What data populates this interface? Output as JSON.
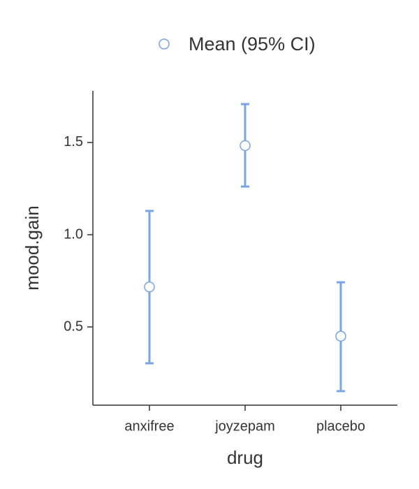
{
  "chart_data": {
    "type": "errorbar",
    "x_label": "drug",
    "y_label": "mood.gain",
    "categories": [
      "anxifree",
      "joyzepam",
      "placebo"
    ],
    "series": [
      {
        "name": "Mean (95% CI)",
        "color": "#78a5e6",
        "values": [
          0.717,
          1.483,
          0.45
        ],
        "ci_lower": [
          0.303,
          1.261,
          0.152
        ],
        "ci_upper": [
          1.129,
          1.708,
          0.742
        ]
      }
    ],
    "ylim": [
      0.076,
      1.78
    ],
    "yticks": [
      0.5,
      1.0,
      1.5
    ],
    "legend": "top"
  }
}
